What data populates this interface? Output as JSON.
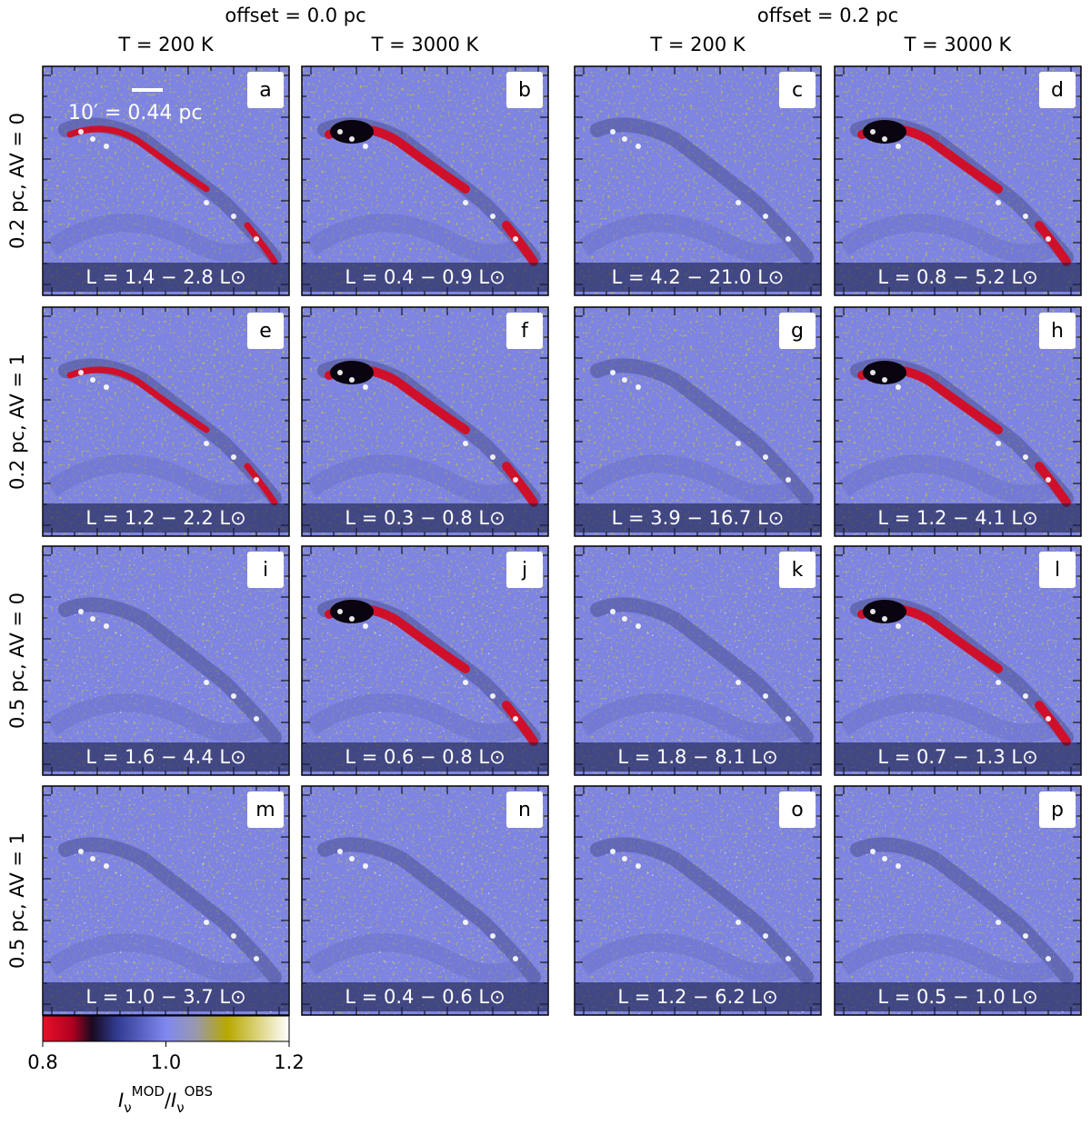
{
  "columns": [
    {
      "group": "offset = 0.0 pc",
      "headers": [
        "T = 200 K",
        "T = 3000 K"
      ]
    },
    {
      "group": "offset = 0.2 pc",
      "headers": [
        "T = 200 K",
        "T = 3000 K"
      ]
    }
  ],
  "rows": [
    "0.2 pc, AV = 0",
    "0.2 pc, AV = 1",
    "0.5 pc, AV = 0",
    "0.5 pc, AV = 1"
  ],
  "panels": [
    {
      "letter": "a",
      "luminosity": "L = 1.4 − 2.8 L⊙"
    },
    {
      "letter": "b",
      "luminosity": "L = 0.4 − 0.9 L⊙"
    },
    {
      "letter": "c",
      "luminosity": "L = 4.2 − 21.0 L⊙"
    },
    {
      "letter": "d",
      "luminosity": "L = 0.8 − 5.2 L⊙"
    },
    {
      "letter": "e",
      "luminosity": "L = 1.2 − 2.2 L⊙"
    },
    {
      "letter": "f",
      "luminosity": "L = 0.3 − 0.8 L⊙"
    },
    {
      "letter": "g",
      "luminosity": "L = 3.9 − 16.7 L⊙"
    },
    {
      "letter": "h",
      "luminosity": "L = 1.2 − 4.1 L⊙"
    },
    {
      "letter": "i",
      "luminosity": "L = 1.6 − 4.4 L⊙"
    },
    {
      "letter": "j",
      "luminosity": "L = 0.6 − 0.8 L⊙"
    },
    {
      "letter": "k",
      "luminosity": "L = 1.8 − 8.1 L⊙"
    },
    {
      "letter": "l",
      "luminosity": "L = 0.7 − 1.3 L⊙"
    },
    {
      "letter": "m",
      "luminosity": "L = 1.0 − 3.7 L⊙"
    },
    {
      "letter": "n",
      "luminosity": "L = 0.4 − 0.6 L⊙"
    },
    {
      "letter": "o",
      "luminosity": "L = 1.2 − 6.2 L⊙"
    },
    {
      "letter": "p",
      "luminosity": "L = 0.5 − 1.0 L⊙"
    }
  ],
  "scale_bar": "10′ = 0.44 pc",
  "colorbar": {
    "lim": [
      0.8,
      1.2
    ],
    "ticks": [
      0.8,
      {
        "value": 1.0,
        "label": "1.0"
      },
      1.2
    ],
    "label": [
      "I",
      "ν",
      "MOD",
      "/",
      "I",
      "ν",
      "OBS"
    ]
  }
}
